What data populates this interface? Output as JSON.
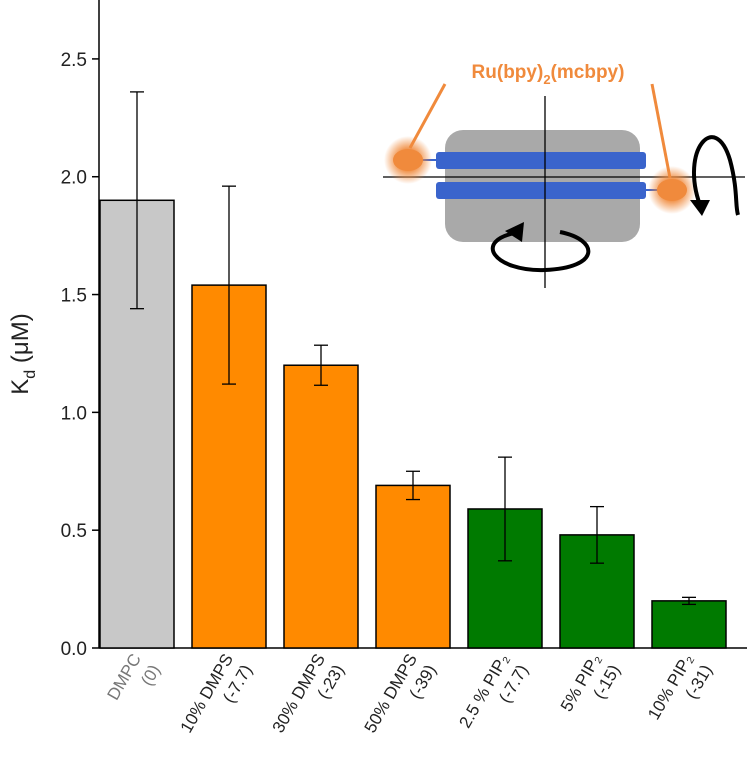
{
  "chart_data": {
    "type": "bar",
    "y_label": [
      "K",
      "d",
      " (μM)"
    ],
    "inset_label": [
      "Ru(bpy)",
      "2",
      "(mcbpy)"
    ],
    "categories": [
      [
        "DMPC",
        "(0)"
      ],
      [
        "10% DMPS",
        "(-7.7)"
      ],
      [
        "30% DMPS",
        "(-23)"
      ],
      [
        "50% DMPS",
        "(-39)"
      ],
      [
        "2.5 % PIP₂",
        "(-7.7)"
      ],
      [
        "5% PIP₂",
        "(-15)"
      ],
      [
        "10% PIP₂",
        "(-31)"
      ]
    ],
    "values": [
      1.9,
      1.54,
      1.2,
      0.69,
      0.59,
      0.48,
      0.2
    ],
    "errors": [
      0.46,
      0.42,
      0.085,
      0.06,
      0.22,
      0.12,
      0.015
    ],
    "colors": [
      "#c8c8c8",
      "#ff8a00",
      "#ff8a00",
      "#ff8a00",
      "#007a00",
      "#007a00",
      "#007a00"
    ],
    "ylim": [
      0,
      2.75
    ],
    "yticks": [
      {
        "value": 0,
        "label": "0.0"
      },
      0.5,
      {
        "value": 1,
        "label": "1.0"
      },
      1.5,
      {
        "value": 2,
        "label": "2.0"
      },
      2.5
    ]
  }
}
